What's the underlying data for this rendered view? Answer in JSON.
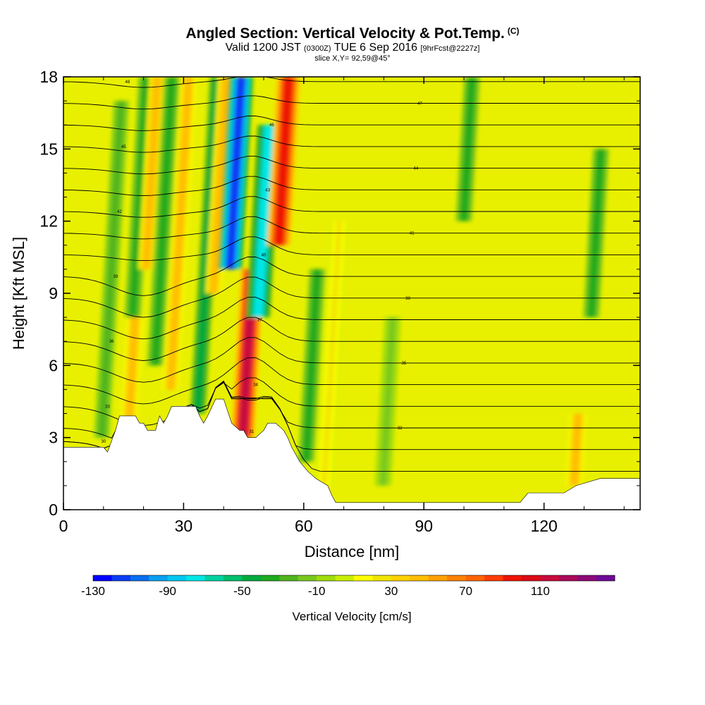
{
  "title": {
    "line1": "Angled Section: Vertical Velocity & Pot.Temp.",
    "line1_unit": "(C)",
    "line2_valid": "Valid 1200 JST",
    "line2_zulu": "(0300Z)",
    "line2_date": "TUE 6 Sep 2016",
    "line2_fcst": "[9hrFcst@2227z]",
    "line3": "slice X,Y= 92,59@45°"
  },
  "chart_data": {
    "type": "heatmap",
    "xlabel": "Distance [nm]",
    "ylabel": "Height [Kft MSL]",
    "xlim": [
      0,
      144
    ],
    "ylim": [
      0,
      18
    ],
    "x_ticks": [
      0,
      30,
      60,
      90,
      120
    ],
    "y_ticks": [
      0,
      3,
      6,
      9,
      12,
      15,
      18
    ],
    "x_tick_labels": [
      "0",
      "30",
      "60",
      "90",
      "120"
    ],
    "y_tick_labels": [
      "0",
      "3",
      "6",
      "9",
      "12",
      "15",
      "18"
    ],
    "colorbar": {
      "label": "Vertical Velocity [cm/s]",
      "min": -130,
      "max": 150,
      "step": 10,
      "tick_values": [
        -130,
        -90,
        -50,
        -10,
        30,
        70,
        110
      ],
      "tick_labels": [
        "-130",
        "-90",
        "-50",
        "-10",
        "30",
        "70",
        "110"
      ],
      "colors": [
        "#0000ff",
        "#0a3cf5",
        "#0a6ef0",
        "#0aa0f0",
        "#00c8f0",
        "#00e6e6",
        "#00d2a0",
        "#00be6e",
        "#00aa3c",
        "#1eaa1e",
        "#50b41e",
        "#78c81e",
        "#a0dc0a",
        "#c8ef00",
        "#ffff00",
        "#f0e600",
        "#ffd200",
        "#ffbe00",
        "#ffa000",
        "#ff8200",
        "#ff6400",
        "#ff3c00",
        "#ee1400",
        "#dc0a14",
        "#c80a3c",
        "#aa0a5a",
        "#8c0a78",
        "#6e0a96"
      ]
    },
    "vertical_velocity_features": [
      {
        "x": 12,
        "z": [
          3,
          17
        ],
        "value": -20
      },
      {
        "x": 17,
        "z": [
          3,
          8
        ],
        "value": 40
      },
      {
        "x": 19,
        "z": [
          8,
          18
        ],
        "value": -30
      },
      {
        "x": 22,
        "z": [
          10,
          18
        ],
        "value": 40
      },
      {
        "x": 25,
        "z": [
          6,
          18
        ],
        "value": -30
      },
      {
        "x": 29,
        "z": [
          5,
          18
        ],
        "value": 40
      },
      {
        "x": 36,
        "z": [
          4,
          18
        ],
        "value": -40
      },
      {
        "x": 39,
        "z": [
          9,
          18
        ],
        "value": 40
      },
      {
        "x": 43,
        "z": [
          10,
          18
        ],
        "value": -110
      },
      {
        "x": 46,
        "z": [
          3,
          10
        ],
        "value": 110
      },
      {
        "x": 50,
        "z": [
          8,
          16
        ],
        "value": -70
      },
      {
        "x": 55,
        "z": [
          11,
          18
        ],
        "value": 90
      },
      {
        "x": 62,
        "z": [
          2,
          10
        ],
        "value": -30
      },
      {
        "x": 67,
        "z": [
          1,
          12
        ],
        "value": 20
      },
      {
        "x": 81,
        "z": [
          1,
          8
        ],
        "value": -10
      },
      {
        "x": 101,
        "z": [
          12,
          18
        ],
        "value": -30
      },
      {
        "x": 128,
        "z": [
          1,
          4
        ],
        "value": 40
      },
      {
        "x": 133,
        "z": [
          8,
          15
        ],
        "value": -30
      }
    ],
    "terrain_height": [
      [
        0,
        2.6
      ],
      [
        10,
        2.6
      ],
      [
        11,
        2.4
      ],
      [
        13,
        3.3
      ],
      [
        14,
        3.9
      ],
      [
        18,
        3.9
      ],
      [
        19,
        3.6
      ],
      [
        20,
        3.6
      ],
      [
        21,
        3.3
      ],
      [
        23,
        3.3
      ],
      [
        24,
        3.9
      ],
      [
        25,
        3.6
      ],
      [
        26,
        3.9
      ],
      [
        27,
        4.3
      ],
      [
        33,
        4.3
      ],
      [
        34,
        3.9
      ],
      [
        35,
        3.6
      ],
      [
        36,
        3.9
      ],
      [
        38,
        4.6
      ],
      [
        40,
        4.6
      ],
      [
        42,
        3.6
      ],
      [
        44,
        3.3
      ],
      [
        45,
        3.3
      ],
      [
        46,
        3.0
      ],
      [
        48,
        3.0
      ],
      [
        50,
        3.3
      ],
      [
        51,
        3.6
      ],
      [
        53,
        3.6
      ],
      [
        55,
        3.3
      ],
      [
        56,
        3.0
      ],
      [
        57,
        2.6
      ],
      [
        59,
        2.0
      ],
      [
        61,
        1.6
      ],
      [
        63,
        1.3
      ],
      [
        66,
        1.0
      ],
      [
        67,
        0.6
      ],
      [
        68,
        0.3
      ],
      [
        96,
        0.3
      ],
      [
        114,
        0.3
      ],
      [
        116,
        0.7
      ],
      [
        120,
        0.7
      ],
      [
        125,
        0.7
      ],
      [
        128,
        1.0
      ],
      [
        134,
        1.3
      ],
      [
        144,
        1.3
      ]
    ],
    "pot_temp_contour_labels": [
      "30",
      "31",
      "32",
      "33",
      "34",
      "35",
      "36",
      "37",
      "38",
      "39",
      "40",
      "41",
      "42",
      "43",
      "44",
      "45",
      "46",
      "47",
      "48"
    ]
  }
}
